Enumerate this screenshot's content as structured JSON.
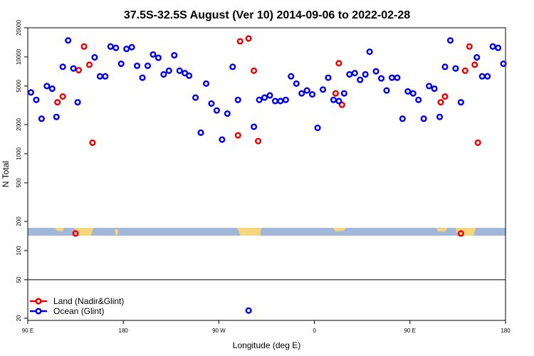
{
  "chart_data": {
    "type": "scatter",
    "title": "37.5S-32.5S August (Ver 10)   2014-09-06 to 2022-02-28",
    "xlabel": "Longitude (deg E)",
    "ylabel": "N Total",
    "x_scale": "longitude starting at 90E",
    "y_scale": "log",
    "xlim": [
      0,
      450
    ],
    "ylim": [
      19,
      20000
    ],
    "x_ticks": [
      {
        "value": 0,
        "label": "90 E"
      },
      {
        "value": 90,
        "label": "180"
      },
      {
        "value": 180,
        "label": "90 W"
      },
      {
        "value": 270,
        "label": "0"
      },
      {
        "value": 360,
        "label": "90 E"
      },
      {
        "value": 450,
        "label": "180"
      }
    ],
    "y_ticks": [
      {
        "value": 20,
        "label": "20"
      },
      {
        "value": 50,
        "label": "50"
      },
      {
        "value": 100,
        "label": "100"
      },
      {
        "value": 200,
        "label": "200"
      },
      {
        "value": 500,
        "label": "500"
      },
      {
        "value": 1000,
        "label": "1000"
      },
      {
        "value": 2000,
        "label": "2000"
      },
      {
        "value": 5000,
        "label": "5000"
      },
      {
        "value": 10000,
        "label": "10000"
      },
      {
        "value": 20000,
        "label": "20000"
      }
    ],
    "horizontal_line": 50,
    "legend_position": "bottom-left",
    "series": [
      {
        "name": "Land (Nadir&Glint)",
        "color": "#ee0000",
        "points": [
          [
            28,
            3400
          ],
          [
            33,
            3900
          ],
          [
            48,
            7300
          ],
          [
            53,
            12800
          ],
          [
            58,
            8300
          ],
          [
            61,
            1300
          ],
          [
            45,
            150
          ],
          [
            198,
            1550
          ],
          [
            200,
            14500
          ],
          [
            208,
            15500
          ],
          [
            213,
            7200
          ],
          [
            217,
            1350
          ],
          [
            290,
            4200
          ],
          [
            293,
            8600
          ],
          [
            296,
            3200
          ],
          [
            389,
            3400
          ],
          [
            393,
            3900
          ],
          [
            408,
            150
          ],
          [
            412,
            7200
          ],
          [
            416,
            12800
          ],
          [
            421,
            8300
          ],
          [
            424,
            1300
          ]
        ]
      },
      {
        "name": "Ocean (Glint)",
        "color": "#0000ee",
        "points": [
          [
            3,
            4300
          ],
          [
            8,
            3600
          ],
          [
            13,
            2300
          ],
          [
            18,
            5000
          ],
          [
            23,
            4700
          ],
          [
            27,
            2400
          ],
          [
            33,
            7900
          ],
          [
            38,
            14800
          ],
          [
            43,
            7600
          ],
          [
            47,
            3400
          ],
          [
            63,
            9900
          ],
          [
            68,
            6300
          ],
          [
            73,
            6300
          ],
          [
            78,
            12800
          ],
          [
            83,
            12400
          ],
          [
            88,
            8500
          ],
          [
            93,
            12100
          ],
          [
            98,
            12600
          ],
          [
            103,
            8100
          ],
          [
            108,
            6100
          ],
          [
            113,
            8100
          ],
          [
            118,
            10600
          ],
          [
            123,
            9800
          ],
          [
            128,
            6600
          ],
          [
            133,
            7200
          ],
          [
            138,
            10400
          ],
          [
            143,
            7200
          ],
          [
            148,
            6800
          ],
          [
            152,
            6400
          ],
          [
            158,
            3800
          ],
          [
            163,
            1650
          ],
          [
            168,
            5300
          ],
          [
            173,
            3300
          ],
          [
            178,
            2800
          ],
          [
            183,
            1400
          ],
          [
            188,
            2600
          ],
          [
            193,
            7900
          ],
          [
            198,
            3600
          ],
          [
            213,
            1900
          ],
          [
            218,
            3600
          ],
          [
            223,
            3800
          ],
          [
            228,
            4000
          ],
          [
            233,
            3500
          ],
          [
            238,
            3500
          ],
          [
            243,
            3600
          ],
          [
            248,
            6300
          ],
          [
            253,
            5300
          ],
          [
            258,
            4200
          ],
          [
            263,
            4500
          ],
          [
            268,
            4100
          ],
          [
            273,
            1850
          ],
          [
            278,
            4600
          ],
          [
            283,
            6100
          ],
          [
            288,
            3600
          ],
          [
            293,
            3500
          ],
          [
            298,
            4200
          ],
          [
            303,
            6600
          ],
          [
            308,
            6800
          ],
          [
            313,
            5800
          ],
          [
            318,
            6600
          ],
          [
            322,
            11300
          ],
          [
            328,
            7100
          ],
          [
            333,
            6000
          ],
          [
            338,
            4500
          ],
          [
            343,
            6100
          ],
          [
            348,
            6100
          ],
          [
            353,
            2300
          ],
          [
            358,
            4400
          ],
          [
            363,
            4200
          ],
          [
            368,
            3600
          ],
          [
            373,
            2300
          ],
          [
            378,
            5000
          ],
          [
            383,
            4700
          ],
          [
            388,
            2400
          ],
          [
            393,
            7900
          ],
          [
            398,
            14800
          ],
          [
            403,
            7600
          ],
          [
            408,
            3400
          ],
          [
            423,
            9900
          ],
          [
            428,
            6300
          ],
          [
            433,
            6300
          ],
          [
            438,
            12800
          ],
          [
            443,
            12400
          ],
          [
            448,
            8500
          ],
          [
            208,
            24
          ]
        ]
      }
    ],
    "map_strip": {
      "ocean_color": "#a3b8d8",
      "land_color": "#f5d67a"
    }
  }
}
